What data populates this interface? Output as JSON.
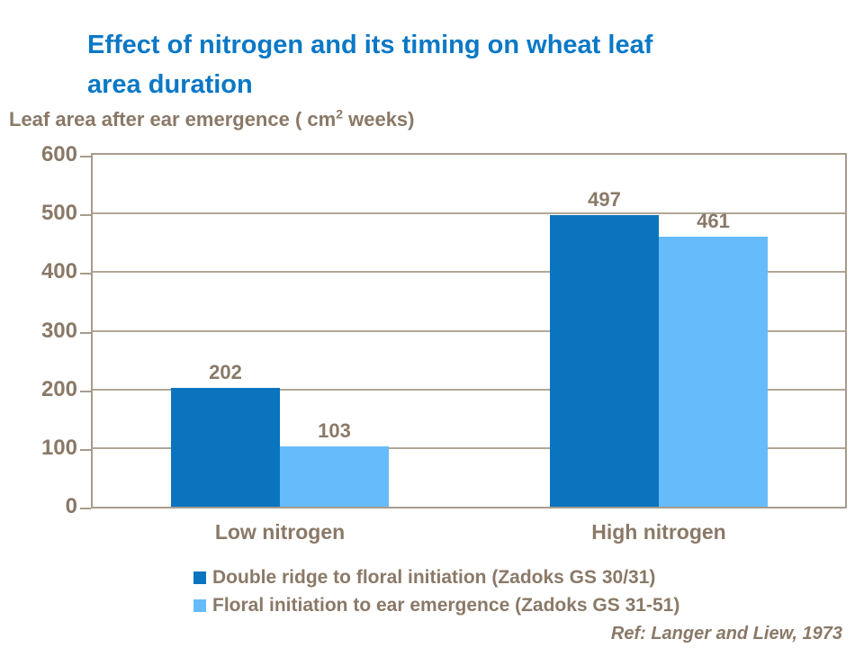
{
  "title": {
    "text": "Effect of nitrogen and its timing on wheat leaf\narea duration",
    "color": "#0A78C6"
  },
  "subtitle": {
    "pre": "Leaf area after ear emergence ( cm",
    "sup": "2",
    "post": " weeks)"
  },
  "chart_data": {
    "type": "bar",
    "categories": [
      "Low nitrogen",
      "High nitrogen"
    ],
    "series": [
      {
        "name": "Double ridge to floral initiation (Zadoks GS 30/31)",
        "color": "#0B74BE",
        "values": [
          202,
          497
        ]
      },
      {
        "name": "Floral initiation to ear emergence (Zadoks GS 31-51)",
        "color": "#66BCFA",
        "values": [
          103,
          461
        ]
      }
    ],
    "title": "Effect of nitrogen and its timing on wheat leaf area duration",
    "xlabel": "",
    "ylabel": "Leaf area after ear emergence ( cm2 weeks)",
    "ylim": [
      0,
      600
    ],
    "yticks": [
      0,
      100,
      200,
      300,
      400,
      500,
      600
    ],
    "grid": true,
    "data_labels": true,
    "legend_position": "bottom"
  },
  "colors": {
    "text_brown": "#8A7967",
    "axis_line": "#A89B8C",
    "gridline": "#B2A797"
  },
  "footer": {
    "ref": "Ref: Langer and Liew, 1973"
  }
}
